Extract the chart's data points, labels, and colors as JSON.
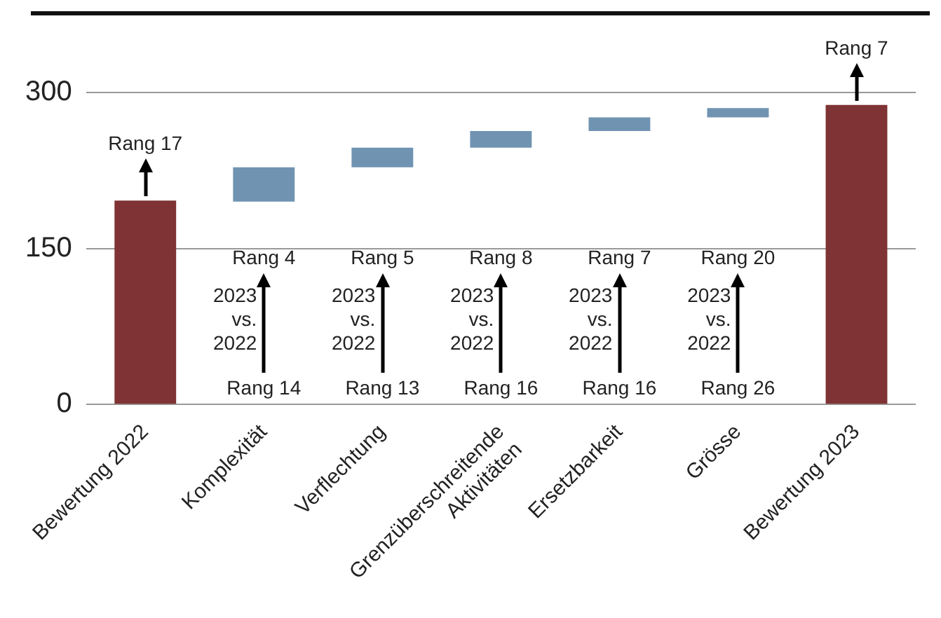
{
  "chart_data": {
    "type": "bar",
    "categories": [
      "Bewertung 2022",
      "Komplexität",
      "Verflechtung",
      "Grenzüberschreitende Aktivitäten",
      "Ersetzbarkeit",
      "Grösse",
      "Bewertung 2023"
    ],
    "values": [
      196,
      33,
      19,
      16,
      13,
      9,
      288
    ],
    "base": [
      0,
      195,
      228,
      247,
      263,
      276,
      0
    ],
    "colors": [
      "#7f3335",
      "#7093b2",
      "#7093b2",
      "#7093b2",
      "#7093b2",
      "#7093b2",
      "#7f3335"
    ],
    "ylim": [
      0,
      300
    ],
    "yticks": [
      0,
      150,
      300
    ],
    "grid": "y",
    "legend": false,
    "annotations": [
      "Rang 17",
      "Rang 7",
      "Rang 4",
      "2023 vs. 2022",
      "Rang 14",
      "Rang 5",
      "2023 vs. 2022",
      "Rang 13",
      "Rang 8",
      "2023 vs. 2022",
      "Rang 16",
      "Rang 7",
      "2023 vs. 2022",
      "Rang 16",
      "Rang 20",
      "2023 vs. 2022",
      "Rang 26"
    ]
  }
}
